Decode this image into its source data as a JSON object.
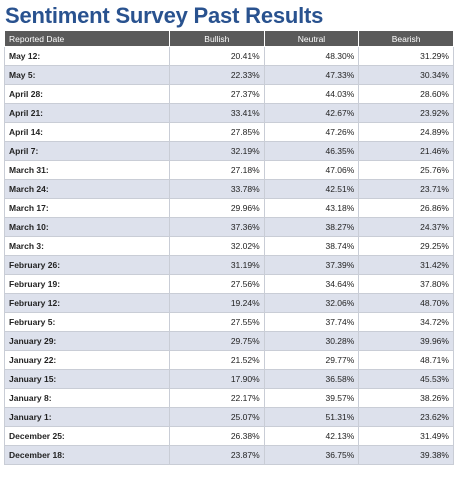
{
  "title": "Sentiment Survey Past Results",
  "columns": [
    "Reported Date",
    "Bullish",
    "Neutral",
    "Bearish"
  ],
  "rows": [
    {
      "date": "May 12:",
      "bullish": "20.41%",
      "neutral": "48.30%",
      "bearish": "31.29%"
    },
    {
      "date": "May 5:",
      "bullish": "22.33%",
      "neutral": "47.33%",
      "bearish": "30.34%"
    },
    {
      "date": "April 28:",
      "bullish": "27.37%",
      "neutral": "44.03%",
      "bearish": "28.60%"
    },
    {
      "date": "April 21:",
      "bullish": "33.41%",
      "neutral": "42.67%",
      "bearish": "23.92%"
    },
    {
      "date": "April 14:",
      "bullish": "27.85%",
      "neutral": "47.26%",
      "bearish": "24.89%"
    },
    {
      "date": "April 7:",
      "bullish": "32.19%",
      "neutral": "46.35%",
      "bearish": "21.46%"
    },
    {
      "date": "March 31:",
      "bullish": "27.18%",
      "neutral": "47.06%",
      "bearish": "25.76%"
    },
    {
      "date": "March 24:",
      "bullish": "33.78%",
      "neutral": "42.51%",
      "bearish": "23.71%"
    },
    {
      "date": "March 17:",
      "bullish": "29.96%",
      "neutral": "43.18%",
      "bearish": "26.86%"
    },
    {
      "date": "March 10:",
      "bullish": "37.36%",
      "neutral": "38.27%",
      "bearish": "24.37%"
    },
    {
      "date": "March 3:",
      "bullish": "32.02%",
      "neutral": "38.74%",
      "bearish": "29.25%"
    },
    {
      "date": "February 26:",
      "bullish": "31.19%",
      "neutral": "37.39%",
      "bearish": "31.42%"
    },
    {
      "date": "February 19:",
      "bullish": "27.56%",
      "neutral": "34.64%",
      "bearish": "37.80%"
    },
    {
      "date": "February 12:",
      "bullish": "19.24%",
      "neutral": "32.06%",
      "bearish": "48.70%"
    },
    {
      "date": "February 5:",
      "bullish": "27.55%",
      "neutral": "37.74%",
      "bearish": "34.72%"
    },
    {
      "date": "January 29:",
      "bullish": "29.75%",
      "neutral": "30.28%",
      "bearish": "39.96%"
    },
    {
      "date": "January 22:",
      "bullish": "21.52%",
      "neutral": "29.77%",
      "bearish": "48.71%"
    },
    {
      "date": "January 15:",
      "bullish": "17.90%",
      "neutral": "36.58%",
      "bearish": "45.53%"
    },
    {
      "date": "January 8:",
      "bullish": "22.17%",
      "neutral": "39.57%",
      "bearish": "38.26%"
    },
    {
      "date": "January 1:",
      "bullish": "25.07%",
      "neutral": "51.31%",
      "bearish": "23.62%"
    },
    {
      "date": "December 25:",
      "bullish": "26.38%",
      "neutral": "42.13%",
      "bearish": "31.49%"
    },
    {
      "date": "December 18:",
      "bullish": "23.87%",
      "neutral": "36.75%",
      "bearish": "39.38%"
    }
  ]
}
